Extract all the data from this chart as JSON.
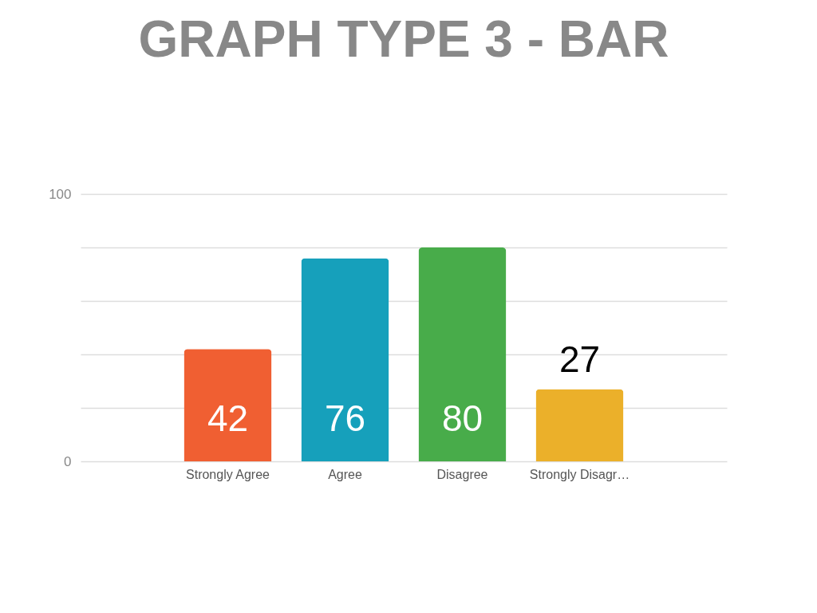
{
  "chart_data": {
    "type": "bar",
    "title": "GRAPH TYPE 3 - BAR",
    "categories": [
      "Strongly Agree",
      "Agree",
      "Disagree",
      "Strongly Disagr…"
    ],
    "values": [
      42,
      76,
      80,
      27
    ],
    "colors": [
      "#f05f32",
      "#16a0bb",
      "#48ac4a",
      "#ebb02a"
    ],
    "ylim": [
      0,
      100
    ],
    "yticks": [
      0,
      {
        "value": 20,
        "label": null
      },
      {
        "value": 40,
        "label": null
      },
      {
        "value": 60,
        "label": null
      },
      {
        "value": 80,
        "label": null
      },
      100
    ],
    "grid": "y",
    "data_labels": true
  }
}
